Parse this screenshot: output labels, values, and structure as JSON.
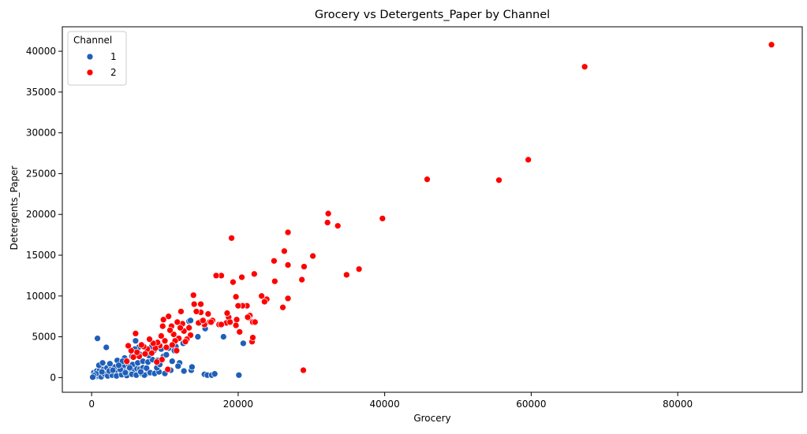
{
  "chart_data": {
    "type": "scatter",
    "title": "Grocery vs Detergents_Paper by Channel",
    "xlabel": "Grocery",
    "ylabel": "Detergents_Paper",
    "xlim": [
      -4000,
      97000
    ],
    "ylim": [
      -1800,
      43000
    ],
    "xticks": [
      0,
      20000,
      40000,
      60000,
      80000
    ],
    "yticks": [
      0,
      5000,
      10000,
      15000,
      20000,
      25000,
      30000,
      35000,
      40000
    ],
    "grid": false,
    "legend": {
      "title": "Channel",
      "placement": "top-left"
    },
    "series": [
      {
        "name": "1",
        "color": "#1f5fb8",
        "points": [
          [
            200,
            100
          ],
          [
            400,
            150
          ],
          [
            600,
            200
          ],
          [
            800,
            120
          ],
          [
            1000,
            300
          ],
          [
            1200,
            250
          ],
          [
            1500,
            400
          ],
          [
            1800,
            350
          ],
          [
            2000,
            500
          ],
          [
            2300,
            450
          ],
          [
            2600,
            600
          ],
          [
            3000,
            550
          ],
          [
            3300,
            700
          ],
          [
            3600,
            650
          ],
          [
            4000,
            800
          ],
          [
            4300,
            750
          ],
          [
            4700,
            900
          ],
          [
            5000,
            850
          ],
          [
            5400,
            1000
          ],
          [
            5800,
            950
          ],
          [
            6200,
            1100
          ],
          [
            6600,
            1050
          ],
          [
            7000,
            1200
          ],
          [
            7500,
            1150
          ],
          [
            300,
            600
          ],
          [
            700,
            800
          ],
          [
            1100,
            900
          ],
          [
            1600,
            1000
          ],
          [
            2100,
            1200
          ],
          [
            2700,
            1100
          ],
          [
            3200,
            1300
          ],
          [
            3800,
            1400
          ],
          [
            4400,
            1500
          ],
          [
            5000,
            1700
          ],
          [
            5600,
            1600
          ],
          [
            6300,
            1800
          ],
          [
            7000,
            2000
          ],
          [
            7700,
            1900
          ],
          [
            8300,
            2200
          ],
          [
            9000,
            2100
          ],
          [
            500,
            300
          ],
          [
            900,
            200
          ],
          [
            1300,
            100
          ],
          [
            1700,
            450
          ],
          [
            2200,
            200
          ],
          [
            2800,
            300
          ],
          [
            3400,
            200
          ],
          [
            4100,
            350
          ],
          [
            4800,
            250
          ],
          [
            5500,
            400
          ],
          [
            6100,
            300
          ],
          [
            6800,
            500
          ],
          [
            7400,
            400
          ],
          [
            8000,
            600
          ],
          [
            8600,
            500
          ],
          [
            9200,
            700
          ],
          [
            1000,
            1500
          ],
          [
            1500,
            1800
          ],
          [
            2500,
            1700
          ],
          [
            3500,
            2100
          ],
          [
            4500,
            2400
          ],
          [
            5500,
            2600
          ],
          [
            6500,
            2900
          ],
          [
            7500,
            3100
          ],
          [
            8500,
            3300
          ],
          [
            9500,
            3500
          ],
          [
            10500,
            3600
          ],
          [
            11500,
            3800
          ],
          [
            12500,
            4200
          ],
          [
            13300,
            6900
          ],
          [
            13500,
            7000
          ],
          [
            800,
            4800
          ],
          [
            2000,
            3700
          ],
          [
            6000,
            4500
          ],
          [
            8200,
            3800
          ],
          [
            9800,
            2600
          ],
          [
            11000,
            2000
          ],
          [
            12000,
            1800
          ],
          [
            12600,
            800
          ],
          [
            13600,
            900
          ],
          [
            13700,
            1300
          ],
          [
            15400,
            400
          ],
          [
            15800,
            300
          ],
          [
            16400,
            300
          ],
          [
            16800,
            450
          ],
          [
            18000,
            5000
          ],
          [
            20100,
            300
          ],
          [
            20700,
            4200
          ],
          [
            10000,
            500
          ],
          [
            8900,
            1200
          ],
          [
            7200,
            300
          ],
          [
            6700,
            700
          ],
          [
            5200,
            1200
          ],
          [
            4600,
            600
          ],
          [
            3900,
            1000
          ],
          [
            2400,
            800
          ],
          [
            1400,
            700
          ],
          [
            600,
            450
          ],
          [
            300,
            250
          ],
          [
            150,
            50
          ],
          [
            9300,
            1600
          ],
          [
            10200,
            2800
          ],
          [
            11300,
            3300
          ],
          [
            6400,
            3700
          ],
          [
            7800,
            2700
          ],
          [
            5900,
            3500
          ],
          [
            14500,
            5000
          ],
          [
            15500,
            6000
          ],
          [
            4200,
            2000
          ],
          [
            3700,
            1500
          ],
          [
            2900,
            900
          ],
          [
            11800,
            1400
          ],
          [
            10800,
            900
          ]
        ]
      },
      {
        "name": "2",
        "color": "#ff0000",
        "points": [
          [
            92800,
            40800
          ],
          [
            67300,
            38100
          ],
          [
            59600,
            26700
          ],
          [
            55600,
            24200
          ],
          [
            45800,
            24300
          ],
          [
            39700,
            19500
          ],
          [
            36500,
            13300
          ],
          [
            34800,
            12600
          ],
          [
            33600,
            18600
          ],
          [
            32200,
            19000
          ],
          [
            32300,
            20100
          ],
          [
            30200,
            14900
          ],
          [
            29000,
            13600
          ],
          [
            28700,
            12000
          ],
          [
            28900,
            900
          ],
          [
            26800,
            17800
          ],
          [
            26800,
            13800
          ],
          [
            26800,
            9700
          ],
          [
            26300,
            15500
          ],
          [
            25000,
            11800
          ],
          [
            24900,
            14300
          ],
          [
            26100,
            8600
          ],
          [
            23900,
            9600
          ],
          [
            23600,
            9300
          ],
          [
            23200,
            10000
          ],
          [
            22200,
            12700
          ],
          [
            21900,
            4400
          ],
          [
            22000,
            4900
          ],
          [
            22000,
            6800
          ],
          [
            22300,
            6800
          ],
          [
            21600,
            7600
          ],
          [
            21400,
            7300
          ],
          [
            21200,
            8800
          ],
          [
            20600,
            8800
          ],
          [
            20500,
            12300
          ],
          [
            20200,
            5600
          ],
          [
            20000,
            8800
          ],
          [
            19700,
            9900
          ],
          [
            19800,
            7100
          ],
          [
            19700,
            6400
          ],
          [
            19300,
            11700
          ],
          [
            19100,
            17100
          ],
          [
            18700,
            7400
          ],
          [
            18500,
            7900
          ],
          [
            18400,
            6700
          ],
          [
            17700,
            12500
          ],
          [
            17400,
            6500
          ],
          [
            17000,
            12500
          ],
          [
            16500,
            7000
          ],
          [
            16100,
            6800
          ],
          [
            15900,
            7800
          ],
          [
            15400,
            6500
          ],
          [
            15000,
            6900
          ],
          [
            14900,
            8000
          ],
          [
            14900,
            9000
          ],
          [
            14300,
            8100
          ],
          [
            14000,
            9000
          ],
          [
            13900,
            10100
          ],
          [
            13500,
            5200
          ],
          [
            13000,
            4700
          ],
          [
            12600,
            5700
          ],
          [
            12400,
            6600
          ],
          [
            12200,
            8100
          ],
          [
            12100,
            6100
          ],
          [
            11900,
            4800
          ],
          [
            11700,
            6800
          ],
          [
            11400,
            4500
          ],
          [
            11200,
            5300
          ],
          [
            11000,
            4000
          ],
          [
            10900,
            6300
          ],
          [
            10700,
            5800
          ],
          [
            10500,
            7500
          ],
          [
            10200,
            3700
          ],
          [
            10000,
            4500
          ],
          [
            9800,
            7100
          ],
          [
            9700,
            6300
          ],
          [
            9500,
            5100
          ],
          [
            9300,
            3900
          ],
          [
            9000,
            4300
          ],
          [
            8700,
            3600
          ],
          [
            8400,
            4200
          ],
          [
            8200,
            3000
          ],
          [
            7900,
            4700
          ],
          [
            7600,
            3500
          ],
          [
            7300,
            2900
          ],
          [
            7100,
            3800
          ],
          [
            6800,
            4000
          ],
          [
            6500,
            2600
          ],
          [
            6200,
            3100
          ],
          [
            6000,
            5400
          ],
          [
            5700,
            2500
          ],
          [
            5400,
            3300
          ],
          [
            5000,
            3900
          ],
          [
            4800,
            2000
          ],
          [
            10400,
            1000
          ],
          [
            9600,
            2200
          ],
          [
            8900,
            1900
          ],
          [
            11600,
            3300
          ],
          [
            12800,
            4400
          ],
          [
            13300,
            6100
          ],
          [
            14600,
            6700
          ],
          [
            15200,
            7000
          ],
          [
            16300,
            6800
          ],
          [
            17700,
            6500
          ],
          [
            18900,
            6800
          ],
          [
            21300,
            7400
          ]
        ]
      }
    ]
  }
}
